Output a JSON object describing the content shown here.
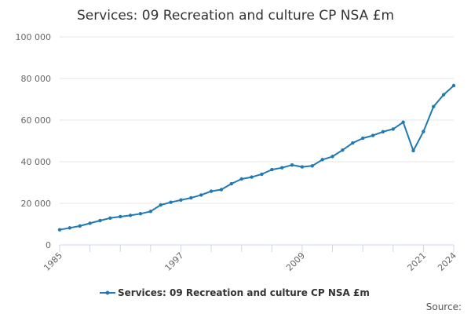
{
  "chart_data": {
    "type": "line",
    "title": "Services: 09 Recreation and culture CP NSA £m",
    "xlabel": "",
    "ylabel": "",
    "xlim": [
      1985,
      2024
    ],
    "ylim": [
      0,
      100000
    ],
    "y_ticks": [
      0,
      20000,
      40000,
      60000,
      80000,
      100000
    ],
    "y_tick_labels": [
      "0",
      "20 000",
      "40 000",
      "60 000",
      "80 000",
      "100 000"
    ],
    "x_ticks": [
      1985,
      1997,
      2009,
      2021,
      2024
    ],
    "x_tick_labels": [
      "1985",
      "1997",
      "2009",
      "2021",
      "2024"
    ],
    "grid": "horizontal",
    "legend_position": "bottom",
    "series": [
      {
        "name": "Services: 09 Recreation and culture CP NSA £m",
        "color": "#1f7ab4",
        "x": [
          1985,
          1986,
          1987,
          1988,
          1989,
          1990,
          1991,
          1992,
          1993,
          1994,
          1995,
          1996,
          1997,
          1998,
          1999,
          2000,
          2001,
          2002,
          2003,
          2004,
          2005,
          2006,
          2007,
          2008,
          2009,
          2010,
          2011,
          2012,
          2013,
          2014,
          2015,
          2016,
          2017,
          2018,
          2019,
          2020,
          2021,
          2022,
          2023,
          2024
        ],
        "values": [
          7300,
          8200,
          9100,
          10400,
          11700,
          12900,
          13600,
          14200,
          15000,
          16100,
          19200,
          20500,
          21600,
          22600,
          24000,
          25800,
          26600,
          29400,
          31700,
          32600,
          34000,
          36200,
          37100,
          38400,
          37500,
          38000,
          41000,
          42500,
          45600,
          49000,
          51300,
          52600,
          54400,
          55700,
          59000,
          45300,
          54500,
          66500,
          72200,
          76600
        ]
      }
    ]
  },
  "credit": "Source:"
}
